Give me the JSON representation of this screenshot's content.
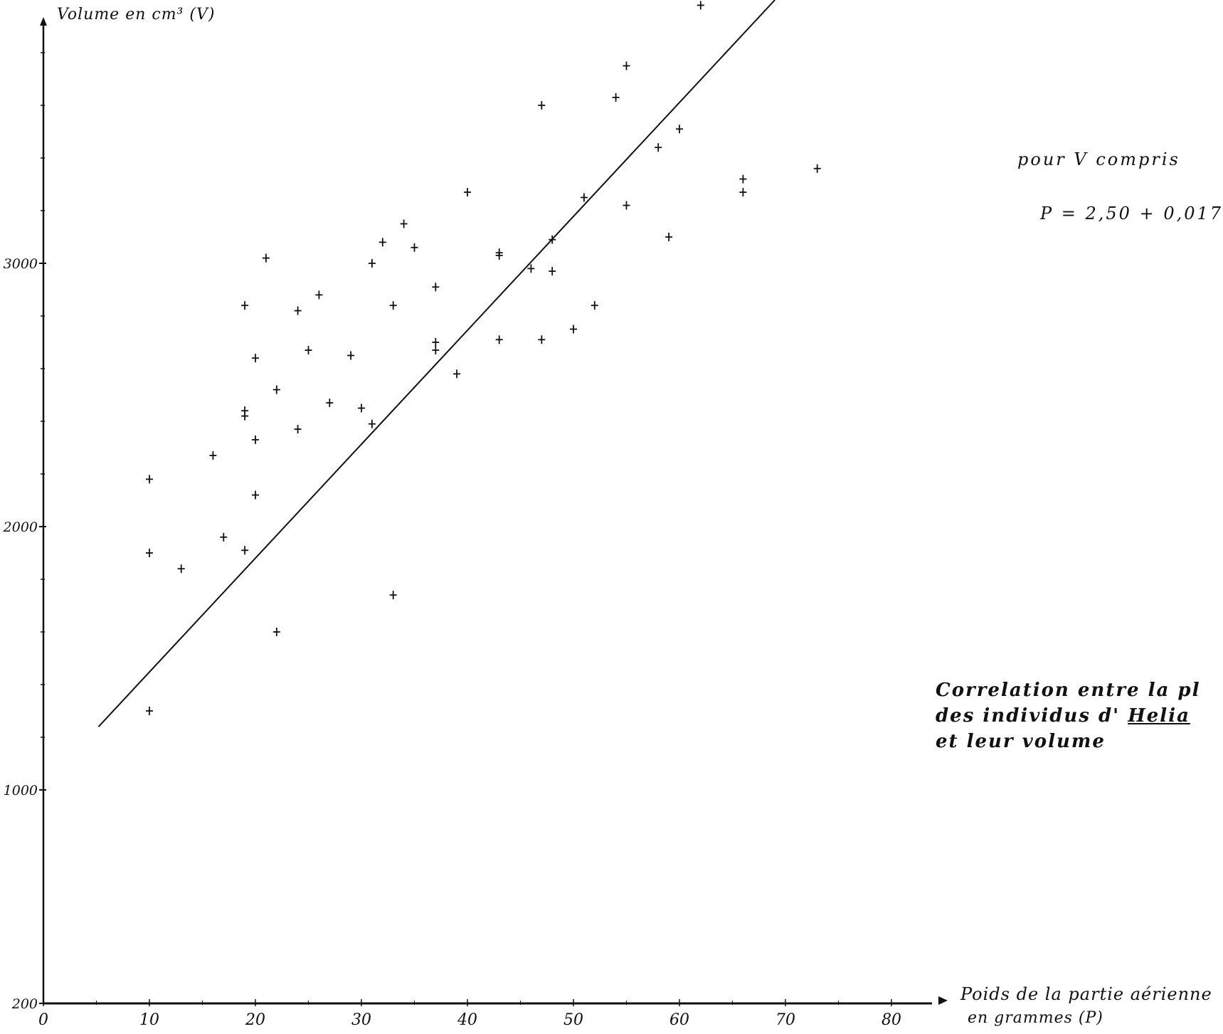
{
  "chart_data": {
    "type": "scatter",
    "title": "",
    "ylabel": "Volume en cm³ (V)",
    "xlabel": "Poids de la partie aérienne",
    "xlabel_line2": "en grammes    (P)",
    "x_ticks": [
      "0",
      "10",
      "20",
      "30",
      "40",
      "50",
      "60",
      "70",
      "80"
    ],
    "y_ticks": [
      "200",
      "1000",
      "2000",
      "3000"
    ],
    "annotation": {
      "line1": "pour   V  compris",
      "line2": "P =  2,50  + 0,017"
    },
    "caption": {
      "line1_a": "Correlation  entre ",
      "line1_b": "la  pl",
      "line2_a": "des  individus  d' ",
      "line2_b": "Helia",
      "line3": "et  leur  volume"
    },
    "series": [
      {
        "points": [
          [
            10,
            1300
          ],
          [
            10,
            1900
          ],
          [
            10,
            2180
          ],
          [
            13,
            1840
          ],
          [
            16,
            2270
          ],
          [
            17,
            1960
          ],
          [
            19,
            1910
          ],
          [
            19,
            2420
          ],
          [
            19,
            2440
          ],
          [
            19,
            2840
          ],
          [
            20,
            2120
          ],
          [
            20,
            2330
          ],
          [
            20,
            2640
          ],
          [
            21,
            3020
          ],
          [
            22,
            1600
          ],
          [
            22,
            2520
          ],
          [
            24,
            2370
          ],
          [
            24,
            2820
          ],
          [
            25,
            2670
          ],
          [
            26,
            2880
          ],
          [
            27,
            2470
          ],
          [
            29,
            2650
          ],
          [
            30,
            2450
          ],
          [
            31,
            2390
          ],
          [
            31,
            3000
          ],
          [
            32,
            3080
          ],
          [
            33,
            1740
          ],
          [
            33,
            2840
          ],
          [
            34,
            3150
          ],
          [
            35,
            3060
          ],
          [
            37,
            2670
          ],
          [
            37,
            2700
          ],
          [
            37,
            2910
          ],
          [
            39,
            2580
          ],
          [
            40,
            3270
          ],
          [
            43,
            2710
          ],
          [
            43,
            3030
          ],
          [
            43,
            3040
          ],
          [
            46,
            2980
          ],
          [
            47,
            2710
          ],
          [
            48,
            2970
          ],
          [
            48,
            3090
          ],
          [
            50,
            2750
          ],
          [
            51,
            3250
          ],
          [
            52,
            2840
          ],
          [
            54,
            3630
          ],
          [
            55,
            3750
          ],
          [
            55,
            3220
          ],
          [
            58,
            3440
          ],
          [
            59,
            3100
          ],
          [
            60,
            3510
          ],
          [
            62,
            3980
          ],
          [
            66,
            3270
          ],
          [
            66,
            3320
          ],
          [
            73,
            3360
          ],
          [
            47,
            3600
          ]
        ]
      }
    ],
    "regression_line": [
      [
        5.2,
        1240
      ],
      [
        69,
        4000
      ]
    ]
  }
}
